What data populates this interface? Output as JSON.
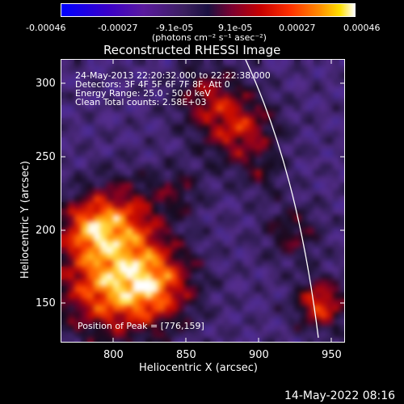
{
  "colorbar": {
    "tick_labels": [
      "-0.00046",
      "-0.00027",
      "-9.1e-05",
      "9.1e-05",
      "0.00027",
      "0.00046"
    ],
    "unit_label": "(photons cm⁻² s⁻¹ asec⁻²)"
  },
  "title": "Reconstructed RHESSI Image",
  "info": {
    "line1": "24-May-2013 22:20:32.000 to 22:22:38.000",
    "line2": "Detectors: 3F 4F 5F 6F 7F 8F, Att 0",
    "line3": "Energy Range: 25.0 - 50.0 keV",
    "line4": "Clean    Total counts: 2.58E+03",
    "peak": "Position of Peak = [776,159]"
  },
  "axes": {
    "xlabel": "Heliocentric X (arcsec)",
    "ylabel": "Heliocentric Y (arcsec)",
    "xticks": [
      "800",
      "850",
      "900",
      "950"
    ],
    "yticks": [
      "150",
      "200",
      "250",
      "300"
    ],
    "xrange": [
      763,
      958
    ],
    "yrange": [
      122,
      317
    ]
  },
  "footer": {
    "timestamp": "14-May-2022 08:16"
  }
}
